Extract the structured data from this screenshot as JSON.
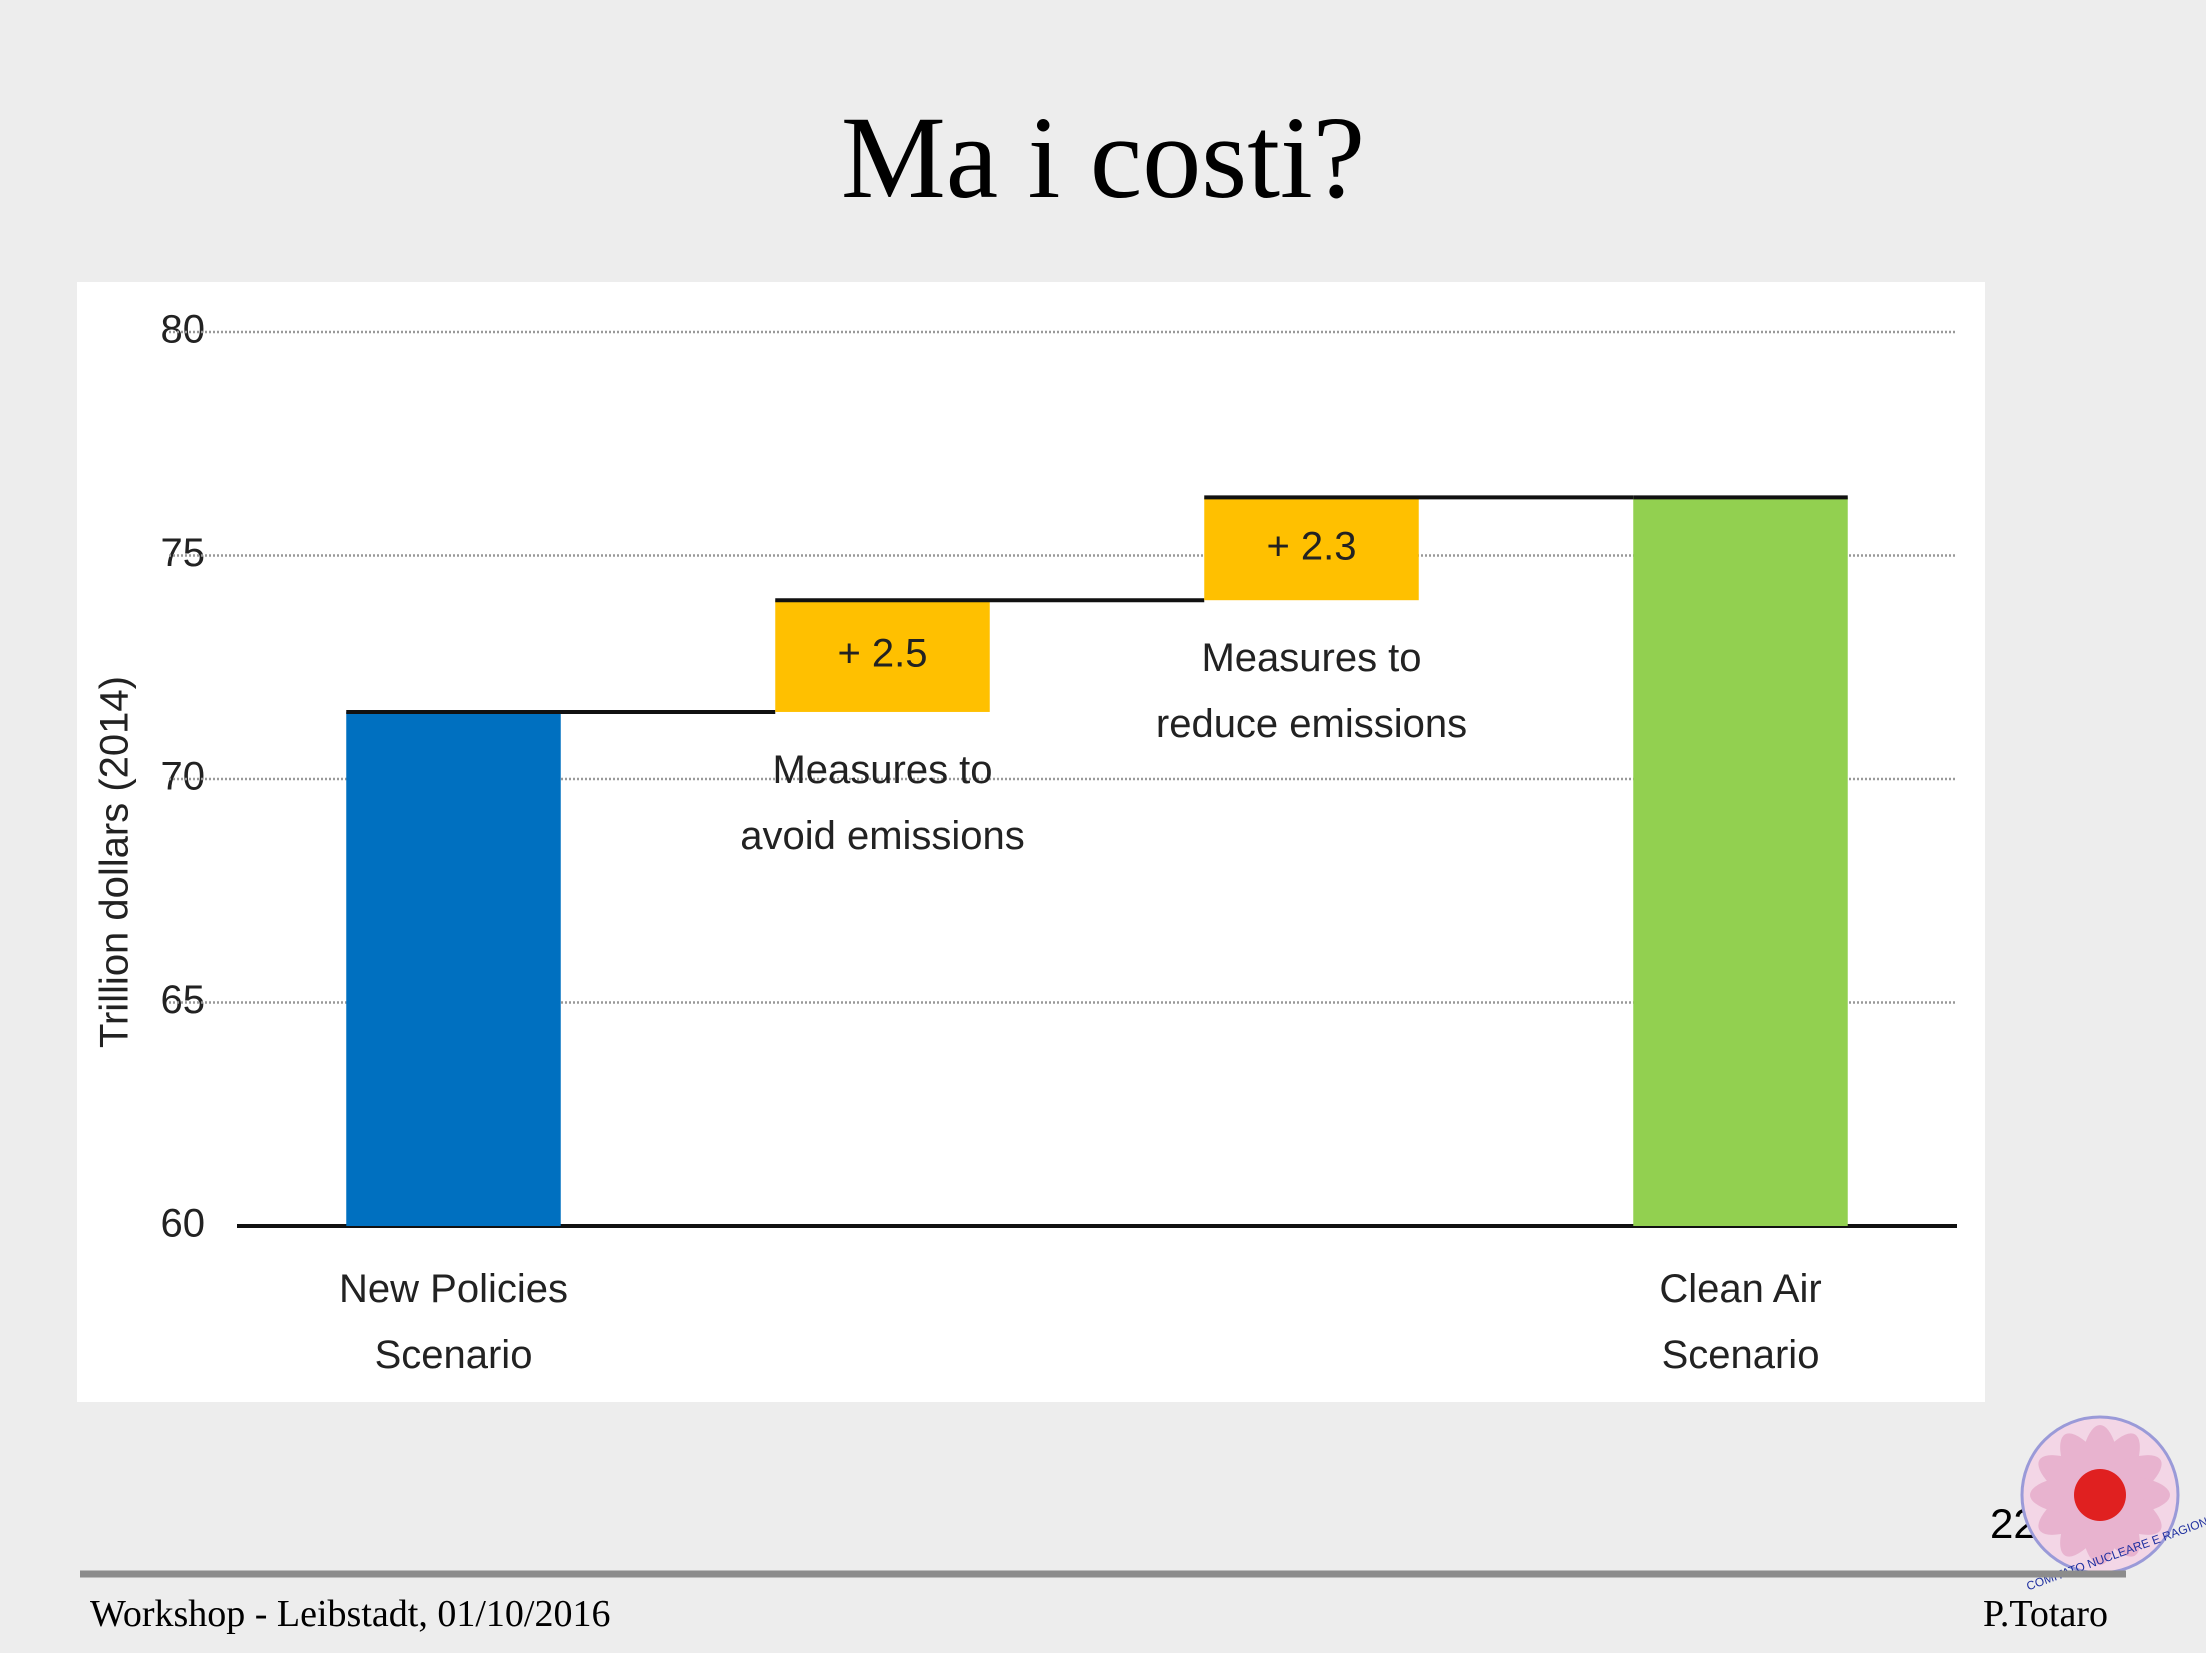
{
  "slide": {
    "title": "Ma i costi?",
    "footer_left": "Workshop -  Leibstadt, 01/10/2016",
    "footer_right": "P.Totaro",
    "page_number": "22",
    "logo_text": "COMITATO NUCLEARE E RAGIONE"
  },
  "chart_data": {
    "type": "waterfall",
    "ylabel": "Trillion dollars (2014)",
    "categories": [
      "New Policies\nScenario",
      "Measures to\navoid emissions",
      "Measures to\nreduce emissions",
      "Clean Air\nScenario"
    ],
    "values": [
      71.5,
      2.5,
      2.3,
      76.3
    ],
    "value_labels": [
      null,
      "+ 2.5",
      "+ 2.3",
      null
    ],
    "is_total": [
      true,
      false,
      false,
      true
    ],
    "colors": [
      "#0070c0",
      "#ffc000",
      "#ffc000",
      "#92d050"
    ],
    "ylim": [
      60,
      80
    ],
    "yticks": [
      60,
      65,
      70,
      75,
      80
    ],
    "grid": true
  }
}
